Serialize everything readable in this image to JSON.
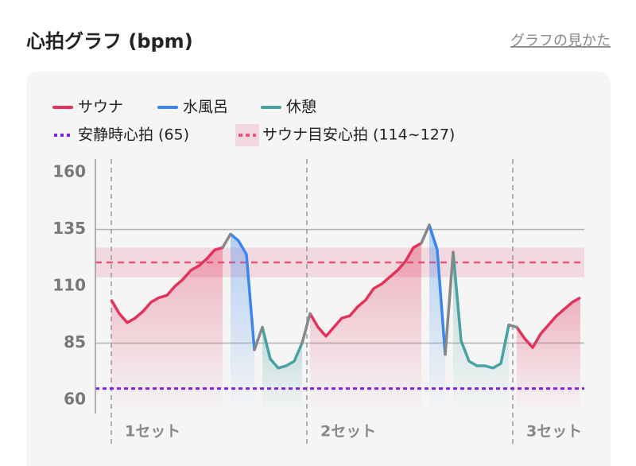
{
  "header": {
    "title": "心拍グラフ (bpm)",
    "link": "グラフの見かた"
  },
  "chart_data": {
    "type": "line",
    "x": [
      2,
      3,
      4,
      5,
      6,
      7,
      8,
      9,
      10,
      11,
      12,
      13,
      14,
      15,
      16,
      17,
      18,
      19,
      20,
      21,
      22,
      23,
      24,
      25,
      26,
      27,
      28,
      29,
      30,
      31,
      32,
      33,
      34,
      35,
      36,
      37,
      38,
      39,
      40,
      41,
      42,
      43,
      44,
      45,
      46,
      47,
      48,
      49,
      50,
      51,
      52,
      53,
      54,
      55,
      56,
      57,
      58,
      59,
      60,
      61
    ],
    "xlim": [
      0,
      61.5
    ],
    "series": [
      {
        "name": "サウナ",
        "color": "#e2345b",
        "values": [
          104,
          98,
          94,
          96,
          99,
          103,
          105,
          106,
          110,
          113,
          117,
          119,
          122,
          126,
          127,
          null,
          null,
          null,
          null,
          null,
          null,
          null,
          null,
          null,
          null,
          98,
          92,
          88,
          92,
          96,
          97,
          101,
          104,
          109,
          111,
          114,
          117,
          121,
          127,
          129,
          null,
          null,
          null,
          null,
          null,
          null,
          null,
          null,
          null,
          null,
          null,
          92,
          87,
          83,
          89,
          93,
          97,
          100,
          103,
          105
        ]
      },
      {
        "name": "水風呂",
        "color": "#3b86ee",
        "values": [
          null,
          null,
          null,
          null,
          null,
          null,
          null,
          null,
          null,
          null,
          null,
          null,
          null,
          null,
          null,
          133,
          130,
          124,
          82,
          null,
          null,
          null,
          null,
          null,
          null,
          null,
          null,
          null,
          null,
          null,
          null,
          null,
          null,
          null,
          null,
          null,
          null,
          null,
          null,
          null,
          137,
          126,
          80,
          null,
          null,
          null,
          null,
          null,
          null,
          null,
          null,
          null,
          null,
          null,
          null,
          null,
          null,
          null,
          null,
          null
        ]
      },
      {
        "name": "休憩",
        "color": "#49a1a2",
        "values": [
          null,
          null,
          null,
          null,
          null,
          null,
          null,
          null,
          null,
          null,
          null,
          null,
          null,
          null,
          null,
          null,
          null,
          null,
          null,
          92,
          78,
          74,
          75,
          77,
          85,
          null,
          null,
          null,
          null,
          null,
          null,
          null,
          null,
          null,
          null,
          null,
          null,
          null,
          null,
          null,
          null,
          null,
          null,
          125,
          86,
          77,
          75,
          75,
          74,
          76,
          93,
          null,
          null,
          null,
          null,
          null,
          null,
          null,
          null,
          null
        ]
      }
    ],
    "ylim": [
      54,
      166
    ],
    "yticks": [
      160,
      135,
      110,
      85,
      60
    ],
    "grid_lines": [
      135,
      85
    ],
    "reference_line": {
      "label": "安静時心拍 (65)",
      "value": 65,
      "color": "#7d22e6"
    },
    "reference_band": {
      "label": "サウナ目安心拍 (114~127)",
      "range": [
        114,
        127
      ],
      "color": "#e8577e"
    },
    "annotations": [
      {
        "label": "1セット",
        "x": 2
      },
      {
        "label": "2セット",
        "x": 26.6
      },
      {
        "label": "3セット",
        "x": 52.5
      }
    ]
  }
}
